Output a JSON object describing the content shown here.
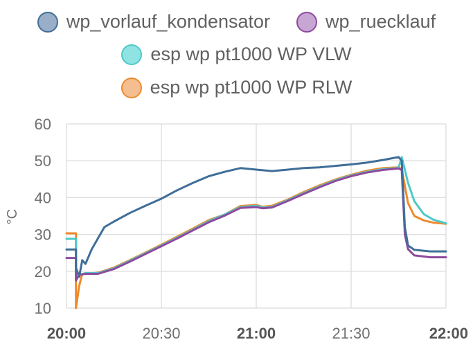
{
  "chart_data": {
    "type": "line",
    "ylabel": "°C",
    "ylim": [
      10,
      60
    ],
    "yticks": [
      10,
      20,
      30,
      40,
      50,
      60
    ],
    "xlim": [
      "20:00",
      "22:00"
    ],
    "xticks": [
      {
        "label": "20:00",
        "bold": true
      },
      {
        "label": "20:30",
        "bold": false
      },
      {
        "label": "21:00",
        "bold": true
      },
      {
        "label": "21:30",
        "bold": false
      },
      {
        "label": "22:00",
        "bold": true
      }
    ],
    "grid": true,
    "legend_position": "top",
    "series": [
      {
        "name": "esp wp pt1000 WP RLW",
        "color": "#ef8a2b",
        "fill": "#f5b98a",
        "x": [
          "20:00",
          "20:03",
          "20:03",
          "20:04",
          "20:05",
          "20:07",
          "20:10",
          "20:15",
          "20:20",
          "20:25",
          "20:30",
          "20:35",
          "20:40",
          "20:45",
          "20:50",
          "20:55",
          "21:00",
          "21:02",
          "21:05",
          "21:10",
          "21:15",
          "21:20",
          "21:25",
          "21:30",
          "21:35",
          "21:40",
          "21:45",
          "21:46",
          "21:48",
          "21:50",
          "21:53",
          "21:56",
          "22:00"
        ],
        "y": [
          30.3,
          30.3,
          10.0,
          16.0,
          19.3,
          19.3,
          19.6,
          21.0,
          23.0,
          25.1,
          27.2,
          29.4,
          31.6,
          33.9,
          35.4,
          37.7,
          38.0,
          37.5,
          37.8,
          39.5,
          41.5,
          43.3,
          44.9,
          46.2,
          47.3,
          48.0,
          48.2,
          47.8,
          38.5,
          35.0,
          33.8,
          33.2,
          32.9
        ]
      },
      {
        "name": "esp wp pt1000 WP VLW",
        "color": "#4ec9c9",
        "fill": "#8fe0e0",
        "x": [
          "20:00",
          "20:03",
          "20:03",
          "20:04",
          "20:06",
          "20:10",
          "20:15",
          "20:20",
          "20:25",
          "20:30",
          "20:35",
          "20:40",
          "20:45",
          "20:50",
          "20:55",
          "21:00",
          "21:02",
          "21:05",
          "21:10",
          "21:15",
          "21:20",
          "21:25",
          "21:30",
          "21:35",
          "21:40",
          "21:45",
          "21:46",
          "21:48",
          "21:50",
          "21:53",
          "21:56",
          "22:00"
        ],
        "y": [
          28.8,
          28.8,
          18.0,
          19.0,
          19.5,
          19.5,
          20.8,
          22.8,
          24.9,
          27.0,
          29.1,
          31.3,
          33.6,
          35.4,
          37.4,
          37.8,
          37.3,
          37.5,
          39.3,
          41.2,
          43.0,
          44.7,
          46.0,
          47.0,
          47.7,
          48.0,
          51.0,
          44.0,
          39.0,
          35.5,
          34.0,
          33.0
        ]
      },
      {
        "name": "wp_ruecklauf",
        "color": "#8e4a9e",
        "fill": "#b78cc6",
        "x": [
          "20:00",
          "20:03",
          "20:03",
          "20:04",
          "20:06",
          "20:10",
          "20:15",
          "20:20",
          "20:25",
          "20:30",
          "20:35",
          "20:40",
          "20:45",
          "20:50",
          "20:55",
          "21:00",
          "21:02",
          "21:05",
          "21:10",
          "21:15",
          "21:20",
          "21:25",
          "21:30",
          "21:35",
          "21:40",
          "21:45",
          "21:46",
          "21:47",
          "21:48",
          "21:50",
          "21:55",
          "22:00"
        ],
        "y": [
          23.6,
          23.6,
          17.5,
          19.0,
          19.3,
          19.3,
          20.6,
          22.6,
          24.7,
          26.8,
          28.9,
          31.1,
          33.3,
          35.1,
          37.2,
          37.4,
          37.1,
          37.3,
          39.1,
          41.0,
          42.8,
          44.5,
          45.8,
          46.8,
          47.5,
          47.9,
          47.5,
          30.0,
          26.0,
          24.3,
          23.8,
          23.8
        ]
      },
      {
        "name": "wp_vorlauf_kondensator",
        "color": "#3f6e98",
        "fill": "#9aaec8",
        "x": [
          "20:00",
          "20:03",
          "20:03",
          "20:04",
          "20:05",
          "20:06",
          "20:08",
          "20:10",
          "20:12",
          "20:15",
          "20:20",
          "20:25",
          "20:30",
          "20:35",
          "20:40",
          "20:45",
          "20:50",
          "20:55",
          "21:00",
          "21:05",
          "21:10",
          "21:15",
          "21:20",
          "21:25",
          "21:30",
          "21:35",
          "21:40",
          "21:45",
          "21:46",
          "21:47",
          "21:48",
          "21:50",
          "21:55",
          "22:00"
        ],
        "y": [
          25.9,
          25.9,
          21.0,
          18.5,
          23.0,
          22.0,
          26.0,
          29.0,
          32.0,
          33.5,
          35.8,
          37.8,
          39.7,
          42.0,
          44.0,
          45.8,
          47.0,
          48.0,
          47.6,
          47.2,
          47.6,
          48.0,
          48.2,
          48.6,
          49.0,
          49.5,
          50.2,
          51.0,
          50.0,
          32.0,
          27.0,
          25.8,
          25.4,
          25.4
        ]
      }
    ]
  },
  "legend": [
    {
      "label": "wp_vorlauf_kondensator",
      "row": 0,
      "color": "#3f6e98",
      "fill": "#9aaec8"
    },
    {
      "label": "wp_ruecklauf",
      "row": 0,
      "color": "#8e4a9e",
      "fill": "#c8a6d4"
    },
    {
      "label": "esp wp pt1000 WP VLW",
      "row": 1,
      "color": "#4ec9c9",
      "fill": "#8fe3e3"
    },
    {
      "label": "esp wp pt1000 WP RLW",
      "row": 2,
      "color": "#ef8a2b",
      "fill": "#f5be90"
    }
  ]
}
